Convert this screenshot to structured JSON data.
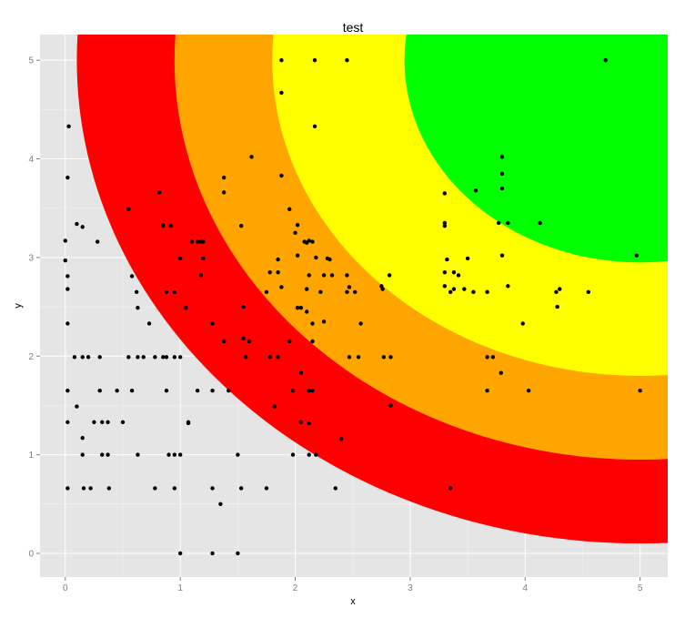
{
  "chart_data": {
    "type": "scatter",
    "title": "test",
    "xlabel": "x",
    "ylabel": "y",
    "xlim": [
      -0.22,
      5.24
    ],
    "ylim": [
      -0.24,
      5.26
    ],
    "x_ticks": [
      0,
      1,
      2,
      3,
      4,
      5
    ],
    "y_ticks": [
      0,
      1,
      2,
      3,
      4,
      5
    ],
    "grid": true,
    "background_color": "#e5e5e5",
    "grid_color": "#ffffff",
    "point_color": "#000000",
    "rings": {
      "center": [
        5,
        5
      ],
      "bands": [
        {
          "outer_radius": 4.9,
          "color": "#ff0000"
        },
        {
          "outer_radius": 4.05,
          "color": "#ffa500"
        },
        {
          "outer_radius": 3.2,
          "color": "#ffff00"
        },
        {
          "outer_radius": 2.05,
          "color": "#00ff00"
        }
      ]
    },
    "points": [
      [
        0.0,
        3.17
      ],
      [
        0.0,
        2.97
      ],
      [
        0.02,
        3.81
      ],
      [
        0.02,
        2.81
      ],
      [
        0.02,
        2.68
      ],
      [
        0.02,
        2.33
      ],
      [
        0.02,
        1.65
      ],
      [
        0.02,
        1.33
      ],
      [
        0.02,
        0.66
      ],
      [
        0.03,
        4.33
      ],
      [
        0.08,
        1.99
      ],
      [
        0.1,
        3.34
      ],
      [
        0.1,
        1.49
      ],
      [
        0.15,
        3.31
      ],
      [
        0.15,
        1.99
      ],
      [
        0.15,
        1.17
      ],
      [
        0.15,
        1.0
      ],
      [
        0.16,
        0.66
      ],
      [
        0.2,
        1.99
      ],
      [
        0.22,
        0.66
      ],
      [
        0.25,
        1.33
      ],
      [
        0.28,
        3.16
      ],
      [
        0.3,
        1.99
      ],
      [
        0.3,
        1.65
      ],
      [
        0.32,
        1.33
      ],
      [
        0.32,
        1.0
      ],
      [
        0.37,
        1.33
      ],
      [
        0.37,
        1.0
      ],
      [
        0.38,
        0.66
      ],
      [
        0.45,
        1.65
      ],
      [
        0.5,
        1.33
      ],
      [
        0.55,
        3.49
      ],
      [
        0.55,
        1.99
      ],
      [
        0.58,
        2.81
      ],
      [
        0.58,
        1.65
      ],
      [
        0.62,
        2.65
      ],
      [
        0.63,
        2.49
      ],
      [
        0.63,
        1.99
      ],
      [
        0.63,
        1.0
      ],
      [
        0.68,
        1.99
      ],
      [
        0.73,
        2.33
      ],
      [
        0.78,
        1.99
      ],
      [
        0.78,
        0.66
      ],
      [
        0.82,
        3.66
      ],
      [
        0.85,
        3.33
      ],
      [
        0.85,
        3.32
      ],
      [
        0.85,
        1.99
      ],
      [
        0.88,
        2.65
      ],
      [
        0.88,
        1.99
      ],
      [
        0.88,
        1.65
      ],
      [
        0.9,
        1.0
      ],
      [
        0.92,
        3.32
      ],
      [
        0.95,
        2.65
      ],
      [
        0.95,
        1.99
      ],
      [
        0.95,
        1.0
      ],
      [
        0.95,
        0.66
      ],
      [
        1.0,
        1.99
      ],
      [
        1.0,
        2.99
      ],
      [
        1.0,
        1.0
      ],
      [
        1.0,
        0.0
      ],
      [
        1.05,
        2.49
      ],
      [
        1.07,
        1.33
      ],
      [
        1.07,
        1.32
      ],
      [
        1.1,
        3.16
      ],
      [
        1.15,
        3.16
      ],
      [
        1.15,
        1.65
      ],
      [
        1.18,
        3.16
      ],
      [
        1.18,
        2.82
      ],
      [
        1.2,
        3.16
      ],
      [
        1.2,
        2.99
      ],
      [
        1.28,
        2.33
      ],
      [
        1.28,
        1.65
      ],
      [
        1.28,
        0.66
      ],
      [
        1.28,
        0.0
      ],
      [
        1.35,
        0.5
      ],
      [
        1.38,
        3.81
      ],
      [
        1.38,
        3.66
      ],
      [
        1.38,
        2.15
      ],
      [
        1.42,
        1.65
      ],
      [
        1.5,
        1.0
      ],
      [
        1.5,
        0.0
      ],
      [
        1.53,
        3.32
      ],
      [
        1.53,
        0.66
      ],
      [
        1.55,
        2.5
      ],
      [
        1.55,
        2.18
      ],
      [
        1.57,
        1.99
      ],
      [
        1.6,
        2.15
      ],
      [
        1.62,
        4.02
      ],
      [
        1.75,
        2.65
      ],
      [
        1.75,
        0.66
      ],
      [
        1.78,
        2.85
      ],
      [
        1.78,
        1.99
      ],
      [
        1.82,
        1.49
      ],
      [
        1.85,
        2.85
      ],
      [
        1.85,
        1.99
      ],
      [
        1.85,
        2.98
      ],
      [
        1.88,
        5.0
      ],
      [
        1.88,
        4.67
      ],
      [
        1.88,
        3.83
      ],
      [
        1.88,
        2.7
      ],
      [
        1.95,
        3.49
      ],
      [
        1.95,
        2.15
      ],
      [
        1.98,
        1.65
      ],
      [
        1.98,
        1.0
      ],
      [
        2.0,
        3.25
      ],
      [
        2.02,
        3.33
      ],
      [
        2.02,
        3.02
      ],
      [
        2.02,
        2.49
      ],
      [
        2.05,
        2.49
      ],
      [
        2.05,
        1.83
      ],
      [
        2.05,
        1.33
      ],
      [
        2.08,
        3.16
      ],
      [
        2.1,
        3.15
      ],
      [
        2.1,
        2.68
      ],
      [
        2.1,
        2.45
      ],
      [
        2.12,
        3.17
      ],
      [
        2.12,
        2.82
      ],
      [
        2.12,
        1.65
      ],
      [
        2.12,
        1.32
      ],
      [
        2.12,
        1.0
      ],
      [
        2.15,
        2.15
      ],
      [
        2.15,
        1.65
      ],
      [
        2.15,
        3.16
      ],
      [
        2.15,
        2.33
      ],
      [
        2.17,
        5.0
      ],
      [
        2.17,
        4.33
      ],
      [
        2.18,
        3.0
      ],
      [
        2.18,
        1.0
      ],
      [
        2.22,
        2.65
      ],
      [
        2.25,
        2.35
      ],
      [
        2.25,
        2.82
      ],
      [
        2.28,
        2.99
      ],
      [
        2.3,
        2.98
      ],
      [
        2.32,
        2.82
      ],
      [
        2.35,
        0.66
      ],
      [
        2.4,
        1.16
      ],
      [
        2.45,
        2.82
      ],
      [
        2.45,
        2.65
      ],
      [
        2.45,
        5.0
      ],
      [
        2.47,
        2.7
      ],
      [
        2.47,
        1.99
      ],
      [
        2.52,
        2.65
      ],
      [
        2.55,
        1.99
      ],
      [
        2.57,
        2.33
      ],
      [
        2.75,
        2.71
      ],
      [
        2.76,
        2.68
      ],
      [
        2.77,
        1.99
      ],
      [
        2.82,
        2.82
      ],
      [
        2.83,
        1.99
      ],
      [
        2.83,
        1.5
      ],
      [
        3.3,
        3.65
      ],
      [
        3.3,
        3.35
      ],
      [
        3.3,
        3.32
      ],
      [
        3.3,
        2.85
      ],
      [
        3.3,
        2.71
      ],
      [
        3.32,
        2.98
      ],
      [
        3.35,
        2.65
      ],
      [
        3.35,
        0.66
      ],
      [
        3.38,
        2.85
      ],
      [
        3.38,
        2.68
      ],
      [
        3.42,
        2.82
      ],
      [
        3.47,
        2.68
      ],
      [
        3.5,
        2.99
      ],
      [
        3.55,
        2.65
      ],
      [
        3.57,
        3.68
      ],
      [
        3.67,
        2.65
      ],
      [
        3.67,
        1.99
      ],
      [
        3.67,
        1.65
      ],
      [
        3.72,
        1.99
      ],
      [
        3.77,
        3.35
      ],
      [
        3.79,
        1.83
      ],
      [
        3.8,
        4.02
      ],
      [
        3.8,
        3.85
      ],
      [
        3.8,
        3.7
      ],
      [
        3.8,
        3.02
      ],
      [
        3.85,
        3.35
      ],
      [
        3.85,
        2.71
      ],
      [
        3.98,
        2.33
      ],
      [
        4.03,
        1.65
      ],
      [
        4.13,
        3.35
      ],
      [
        4.27,
        2.65
      ],
      [
        4.28,
        2.5
      ],
      [
        4.3,
        2.68
      ],
      [
        4.55,
        2.65
      ],
      [
        4.7,
        5.0
      ],
      [
        4.97,
        3.02
      ],
      [
        5.0,
        1.65
      ]
    ]
  }
}
